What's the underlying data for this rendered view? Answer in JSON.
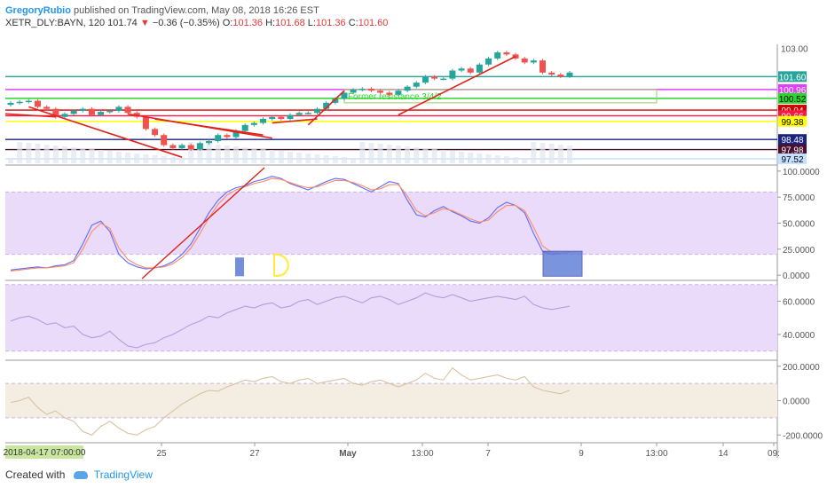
{
  "header": {
    "author": "GregoryRubio",
    "published_text": "published on TradingView.com, May 08, 2018 16:26 EST",
    "symbol": "XETR_DLY:BAYN, 120",
    "last": "101.74",
    "change_arrow": "▼",
    "change": "−0.36 (−0.35%)",
    "open_label": "O:",
    "open": "101.36",
    "high_label": "H:",
    "high": "101.68",
    "low_label": "L:",
    "low": "101.36",
    "close_label": "C:",
    "close": "101.60"
  },
  "footer": {
    "created_with": "Created with",
    "brand": "TradingView"
  },
  "colors": {
    "up": "#26a69a",
    "down": "#ef5350",
    "trendline": "#e0221b",
    "rsi_band": "#e9dbf9",
    "cci_band": "#f4ede2"
  },
  "chart_data": [
    {
      "type": "candlestick",
      "panel": "price",
      "ylim": [
        97.3,
        103.2
      ],
      "price_ticks": [
        "103.00"
      ],
      "annotations": [
        {
          "text": "Former resistance 3/4/2"
        }
      ],
      "closes": [
        100.3,
        100.35,
        100.4,
        100.1,
        100.0,
        99.6,
        99.75,
        99.9,
        100.0,
        99.7,
        99.85,
        99.9,
        100.1,
        99.8,
        99.6,
        99.0,
        98.7,
        98.2,
        98.05,
        98.2,
        98.0,
        98.3,
        98.4,
        98.7,
        98.6,
        98.9,
        99.2,
        99.3,
        99.5,
        99.6,
        99.5,
        99.7,
        99.8,
        99.8,
        100.0,
        100.3,
        100.5,
        100.8,
        100.95,
        101.0,
        100.9,
        100.8,
        100.7,
        100.9,
        101.1,
        101.3,
        101.6,
        101.5,
        101.5,
        101.9,
        102.0,
        101.8,
        102.2,
        102.5,
        102.8,
        102.7,
        102.5,
        102.3,
        102.4,
        101.8,
        101.7,
        101.6,
        101.8
      ],
      "horizontal_levels": [
        {
          "price": "101.60",
          "color": "#26a69a",
          "text_color": "#ffffff"
        },
        {
          "price": "100.96",
          "color": "#e040fb",
          "text_color": "#ffffff"
        },
        {
          "price": "100.52",
          "color": "#2bd62b",
          "text_color": "#000000"
        },
        {
          "price": "99.94",
          "color": "#d50000",
          "text_color": "#ffffff"
        },
        {
          "price": "99.66",
          "color": "#ff1744",
          "text_color": "#ffffff"
        },
        {
          "price": "99.38",
          "color": "#ffff00",
          "text_color": "#000000"
        },
        {
          "price": "98.48",
          "color": "#1a237e",
          "text_color": "#ffffff"
        },
        {
          "price": "97.98",
          "color": "#4a1030",
          "text_color": "#ffffff"
        },
        {
          "price": "97.52",
          "color": "#c5e0ff",
          "text_color": "#000000"
        }
      ]
    },
    {
      "type": "line",
      "panel": "stochastic",
      "ylim": [
        -5,
        105
      ],
      "y_ticks": [
        "100.0000",
        "75.0000",
        "50.0000",
        "25.0000",
        "0.0000"
      ],
      "band": [
        20,
        80
      ],
      "series": [
        {
          "color": "#5b6cff",
          "values": [
            5,
            6,
            7,
            8,
            7,
            9,
            10,
            14,
            30,
            48,
            52,
            42,
            20,
            12,
            8,
            6,
            7,
            9,
            13,
            20,
            30,
            45,
            60,
            72,
            80,
            84,
            86,
            90,
            92,
            95,
            93,
            88,
            85,
            82,
            86,
            90,
            93,
            92,
            88,
            84,
            80,
            85,
            90,
            88,
            72,
            58,
            56,
            62,
            66,
            61,
            57,
            52,
            50,
            55,
            65,
            70,
            67,
            60,
            40,
            23,
            20,
            21,
            22
          ]
        },
        {
          "color": "#ff8a65",
          "values": [
            4,
            5,
            6,
            7,
            7,
            8,
            9,
            12,
            25,
            42,
            50,
            45,
            26,
            15,
            10,
            7,
            7,
            8,
            11,
            17,
            26,
            40,
            55,
            68,
            77,
            82,
            85,
            88,
            90,
            93,
            92,
            89,
            86,
            84,
            85,
            88,
            91,
            91,
            89,
            86,
            82,
            83,
            87,
            87,
            76,
            62,
            57,
            60,
            64,
            62,
            58,
            54,
            51,
            53,
            61,
            67,
            67,
            62,
            46,
            28,
            22,
            21,
            22
          ]
        }
      ]
    },
    {
      "type": "line",
      "panel": "rsi",
      "ylim": [
        25,
        72
      ],
      "y_ticks": [
        "60.0000",
        "40.0000"
      ],
      "band": [
        30,
        70
      ],
      "series": [
        {
          "color": "#b39ddb",
          "values": [
            48,
            50,
            51,
            49,
            46,
            47,
            44,
            45,
            40,
            38,
            39,
            42,
            37,
            33,
            32,
            34,
            35,
            38,
            40,
            43,
            46,
            48,
            51,
            50,
            53,
            55,
            57,
            56,
            58,
            59,
            56,
            57,
            60,
            61,
            58,
            60,
            62,
            63,
            61,
            59,
            62,
            63,
            61,
            58,
            60,
            62,
            65,
            63,
            62,
            64,
            62,
            60,
            61,
            62,
            63,
            62,
            61,
            63,
            58,
            56,
            55,
            56,
            57
          ]
        }
      ]
    },
    {
      "type": "line",
      "panel": "cci",
      "ylim": [
        -240,
        230
      ],
      "y_ticks": [
        "200.0000",
        "0.0000",
        "-200.0000"
      ],
      "band": [
        -100,
        100
      ],
      "series": [
        {
          "color": "#d7c3a3",
          "values": [
            -10,
            0,
            20,
            -40,
            -80,
            -60,
            -100,
            -120,
            -180,
            -200,
            -150,
            -120,
            -160,
            -190,
            -200,
            -170,
            -150,
            -100,
            -60,
            -20,
            10,
            40,
            60,
            55,
            80,
            100,
            120,
            110,
            130,
            140,
            110,
            100,
            120,
            130,
            100,
            110,
            120,
            130,
            100,
            90,
            110,
            120,
            100,
            80,
            100,
            120,
            160,
            130,
            120,
            190,
            150,
            120,
            130,
            140,
            150,
            130,
            120,
            140,
            80,
            60,
            50,
            40,
            60
          ]
        }
      ]
    }
  ],
  "x_axis_labels": [
    "25",
    "27",
    "May",
    "13:00",
    "7",
    "9",
    "13:00",
    "14",
    "09:"
  ],
  "crosshair_time": "2018-04-17 07:00:00"
}
